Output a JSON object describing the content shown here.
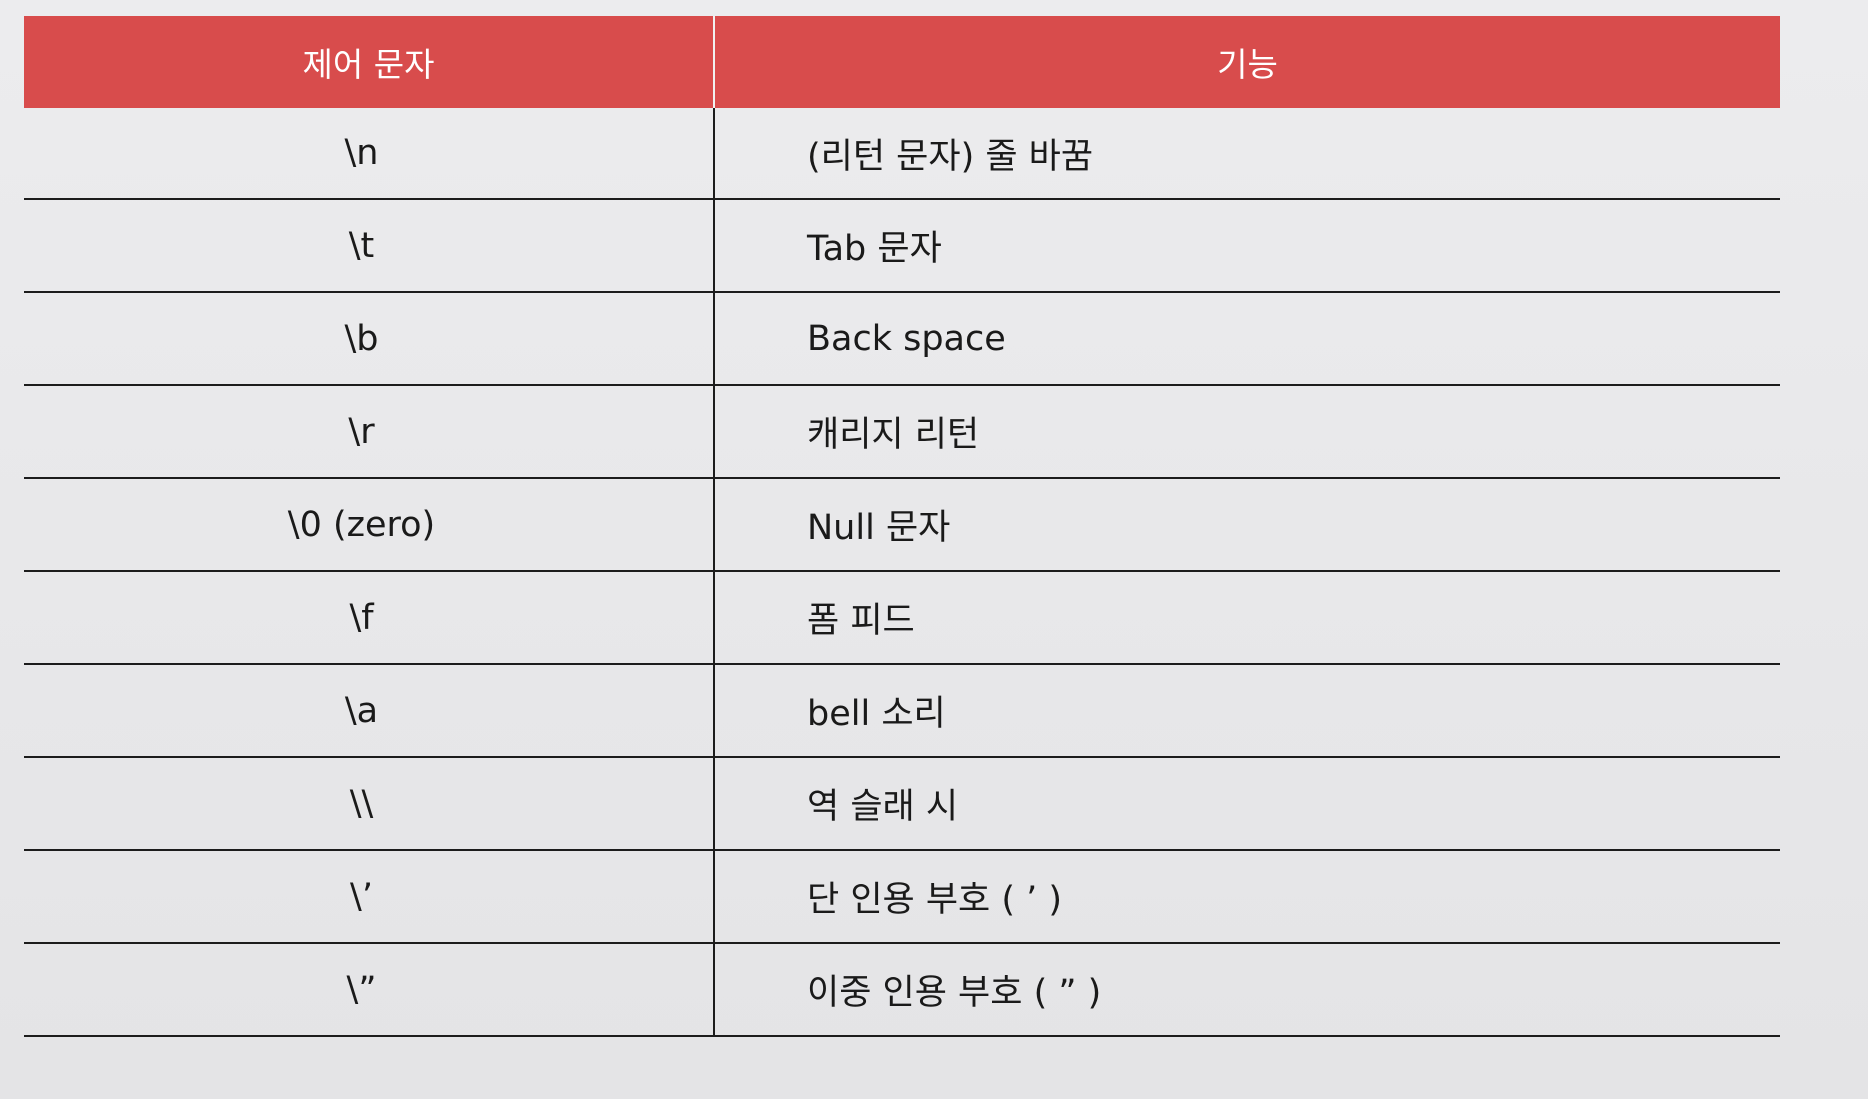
{
  "table": {
    "headers": {
      "code": "제어 문자",
      "function": "기능"
    },
    "rows": [
      {
        "code": "\\n",
        "function": "(리턴 문자) 줄 바꿈"
      },
      {
        "code": "\\t",
        "function": "Tab 문자"
      },
      {
        "code": "\\b",
        "function": "Back space"
      },
      {
        "code": "\\r",
        "function": "캐리지 리턴"
      },
      {
        "code": "\\0 (zero)",
        "function": "Null 문자"
      },
      {
        "code": "\\f",
        "function": "폼 피드"
      },
      {
        "code": "\\a",
        "function": "bell 소리"
      },
      {
        "code": "\\\\",
        "function": "역 슬래 시"
      },
      {
        "code": "\\’",
        "function": "단 인용 부호 ( ’ )"
      },
      {
        "code": "\\”",
        "function": "이중 인용 부호 ( ” )"
      }
    ]
  },
  "colors": {
    "header_background": "#d84c4c",
    "header_text": "#ffffff",
    "page_background": "#ebebed"
  }
}
